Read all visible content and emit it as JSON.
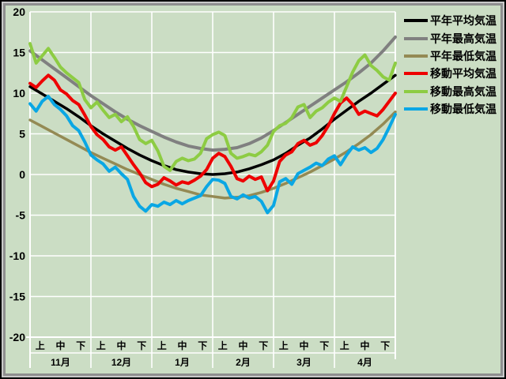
{
  "window": {
    "background_color": "#cbddc4",
    "gridline_color": "#ffffff"
  },
  "legend": {
    "items": [
      {
        "label": "平年平均気温",
        "color": "#000000"
      },
      {
        "label": "平年最高気温",
        "color": "#808080"
      },
      {
        "label": "平年最低気温",
        "color": "#948a54"
      },
      {
        "label": "移動平均気温",
        "color": "#ee0000"
      },
      {
        "label": "移動最高気温",
        "color": "#8dcc43"
      },
      {
        "label": "移動最低気温",
        "color": "#0aa7e4"
      }
    ]
  },
  "chart_data": {
    "type": "line",
    "title": "",
    "grid": true,
    "legend_position": "right",
    "x_axis": {
      "months": [
        "11月",
        "12月",
        "1月",
        "2月",
        "3月",
        "4月"
      ],
      "period_labels": [
        "上",
        "中",
        "下"
      ],
      "range_days": [
        0,
        180
      ]
    },
    "y_axis": {
      "min": -20,
      "max": 20,
      "tick_interval": 5,
      "tick_labels": [
        "20",
        "15",
        "10",
        "5",
        "0",
        "-5",
        "-10",
        "-15",
        "-20"
      ]
    },
    "series": [
      {
        "id": "normal-mean",
        "name": "平年平均気温",
        "color": "#000000",
        "width": 3.5,
        "sample_interval_days": 6,
        "values": [
          10.8,
          9.9,
          9.0,
          8.1,
          7.1,
          6.0,
          5.0,
          4.1,
          3.2,
          2.4,
          1.7,
          1.1,
          0.6,
          0.3,
          0.1,
          0.0,
          0.1,
          0.3,
          0.7,
          1.2,
          1.8,
          2.6,
          3.6,
          4.5,
          5.6,
          6.8,
          7.9,
          9.0,
          10.0,
          11.1,
          12.2
        ]
      },
      {
        "id": "normal-max",
        "name": "平年最高気温",
        "color": "#808080",
        "width": 4,
        "sample_interval_days": 6,
        "values": [
          15.2,
          14.1,
          13.0,
          11.9,
          10.8,
          9.7,
          8.7,
          7.7,
          6.8,
          6.0,
          5.3,
          4.6,
          4.0,
          3.5,
          3.2,
          3.0,
          3.1,
          3.3,
          3.8,
          4.5,
          5.4,
          6.4,
          7.4,
          8.4,
          9.4,
          10.4,
          11.4,
          12.5,
          13.7,
          15.2,
          16.9
        ]
      },
      {
        "id": "normal-min",
        "name": "平年最低気温",
        "color": "#948a54",
        "width": 3.5,
        "sample_interval_days": 6,
        "values": [
          6.7,
          5.9,
          5.1,
          4.3,
          3.5,
          2.7,
          2.0,
          1.3,
          0.6,
          0.0,
          -0.6,
          -1.2,
          -1.7,
          -2.1,
          -2.5,
          -2.7,
          -2.9,
          -2.8,
          -2.6,
          -2.2,
          -1.7,
          -1.1,
          -0.4,
          0.3,
          1.1,
          1.9,
          2.8,
          3.8,
          4.9,
          6.2,
          7.7
        ]
      },
      {
        "id": "moving-mean",
        "name": "移動平均気温",
        "color": "#ee0000",
        "width": 4,
        "sample_interval_days": 3,
        "values": [
          11.2,
          10.7,
          11.5,
          12.2,
          11.6,
          10.4,
          9.9,
          9.1,
          8.6,
          7.3,
          5.9,
          4.9,
          4.3,
          3.4,
          3.0,
          3.4,
          2.3,
          1.2,
          0.2,
          -1.0,
          -1.5,
          -1.2,
          -0.4,
          -0.8,
          -1.3,
          -0.9,
          -1.1,
          -0.7,
          -0.2,
          0.6,
          2.0,
          2.6,
          2.2,
          1.0,
          -0.5,
          -0.8,
          -0.2,
          -0.6,
          -0.3,
          -2.0,
          -0.8,
          1.6,
          2.4,
          2.8,
          3.8,
          4.2,
          3.6,
          3.9,
          4.8,
          6.0,
          7.5,
          8.8,
          9.4,
          8.6,
          7.4,
          7.8,
          7.5,
          7.2,
          8.0,
          9.0,
          10.0
        ]
      },
      {
        "id": "moving-max",
        "name": "移動最高気温",
        "color": "#8dcc43",
        "width": 4,
        "sample_interval_days": 3,
        "values": [
          16.1,
          13.7,
          14.6,
          15.5,
          14.4,
          13.2,
          12.5,
          11.9,
          11.3,
          9.2,
          8.2,
          8.9,
          7.9,
          7.0,
          7.4,
          6.5,
          7.1,
          5.9,
          4.3,
          3.8,
          4.2,
          2.9,
          1.0,
          0.5,
          1.6,
          2.0,
          1.7,
          1.9,
          2.6,
          4.4,
          4.9,
          5.2,
          4.8,
          2.6,
          2.0,
          2.2,
          2.5,
          2.3,
          2.8,
          3.6,
          5.3,
          6.0,
          6.3,
          7.0,
          8.3,
          8.6,
          7.0,
          7.8,
          8.2,
          8.9,
          9.4,
          9.0,
          10.8,
          12.6,
          14.0,
          14.7,
          13.4,
          12.8,
          12.0,
          11.6,
          13.7
        ]
      },
      {
        "id": "moving-min",
        "name": "移動最低気温",
        "color": "#0aa7e4",
        "width": 4,
        "sample_interval_days": 3,
        "values": [
          8.7,
          7.8,
          9.0,
          9.6,
          8.6,
          8.0,
          7.2,
          6.0,
          5.4,
          4.0,
          2.4,
          1.8,
          1.3,
          0.4,
          0.9,
          0.1,
          -0.6,
          -2.7,
          -3.9,
          -4.5,
          -3.7,
          -3.9,
          -3.4,
          -3.7,
          -3.2,
          -3.6,
          -3.2,
          -2.9,
          -2.6,
          -1.5,
          -0.6,
          -0.7,
          -1.1,
          -2.7,
          -3.0,
          -2.5,
          -2.9,
          -2.7,
          -3.3,
          -4.7,
          -3.8,
          -0.9,
          -0.5,
          -1.2,
          0.1,
          0.5,
          0.9,
          1.4,
          1.1,
          1.9,
          2.3,
          1.2,
          2.4,
          3.4,
          3.0,
          3.3,
          2.7,
          3.2,
          4.3,
          5.8,
          7.4
        ]
      }
    ]
  }
}
